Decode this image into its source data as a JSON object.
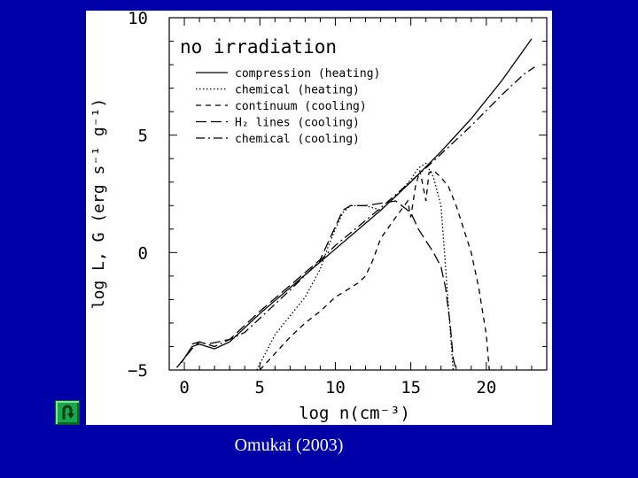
{
  "caption": "Omukai (2003)",
  "back_button": {
    "icon": "u-turn-icon",
    "color": "#1aa64a"
  },
  "colors": {
    "background": "#0000a8",
    "panel": "#ffffff",
    "ink": "#000000"
  },
  "chart_data": {
    "type": "line",
    "title": "no irradiation",
    "xlabel": "log n(cm⁻³)",
    "ylabel": "log L, G (erg s⁻¹ g⁻¹)",
    "xlim": [
      -1,
      24
    ],
    "ylim": [
      -5,
      10
    ],
    "xticks": [
      0,
      5,
      10,
      15,
      20
    ],
    "yticks": [
      -5,
      0,
      5,
      10
    ],
    "grid": false,
    "legend_position": "top-left",
    "series": [
      {
        "name": "compression (heating)",
        "dash": "solid",
        "x": [
          -0.2,
          0.5,
          1.0,
          1.5,
          2.0,
          3.0,
          5.0,
          7.0,
          9.0,
          11.0,
          13.0,
          15.0,
          17.0,
          19.0,
          21.0,
          23.0
        ],
        "y": [
          -4.7,
          -4.0,
          -3.9,
          -4.0,
          -4.1,
          -3.8,
          -2.6,
          -1.5,
          -0.4,
          0.7,
          1.8,
          3.0,
          4.3,
          5.7,
          7.3,
          9.1
        ]
      },
      {
        "name": "chemical (heating)",
        "dash": "dotted",
        "x": [
          4.8,
          6.0,
          7.0,
          8.0,
          9.0,
          9.5,
          10.0,
          10.5,
          11.0,
          12.0,
          13.0,
          14.0,
          15.0,
          15.5,
          16.0,
          16.5,
          17.0,
          17.8
        ],
        "y": [
          -5.0,
          -3.5,
          -2.7,
          -1.9,
          -0.7,
          0.2,
          1.0,
          1.7,
          2.0,
          2.0,
          1.8,
          2.4,
          3.1,
          3.6,
          3.8,
          3.2,
          2.0,
          -5.0
        ]
      },
      {
        "name": "continuum (cooling)",
        "dash": "short-dash",
        "x": [
          5.0,
          6.0,
          7.0,
          8.0,
          9.0,
          10.0,
          11.0,
          11.5,
          12.0,
          12.5,
          13.0,
          14.0,
          14.8,
          15.0,
          15.3,
          15.6,
          16.0,
          16.2,
          16.5,
          17.0,
          17.5,
          18.0,
          19.0,
          19.5,
          20.0,
          20.2
        ],
        "y": [
          -5.0,
          -4.3,
          -3.6,
          -3.0,
          -2.5,
          -1.9,
          -1.5,
          -1.3,
          -1.0,
          -0.3,
          0.6,
          1.5,
          2.2,
          1.5,
          2.8,
          3.5,
          2.2,
          3.4,
          3.5,
          3.2,
          2.8,
          2.0,
          0.0,
          -1.5,
          -3.5,
          -5.0
        ]
      },
      {
        "name": "H₂ lines (cooling)",
        "dash": "long-dash",
        "x": [
          -0.5,
          0.5,
          1.0,
          1.5,
          3.0,
          5.0,
          7.0,
          9.0,
          10.0,
          10.5,
          11.0,
          12.0,
          13.0,
          14.0,
          15.0,
          15.5,
          16.0,
          16.5,
          17.0,
          17.3,
          17.6,
          17.8,
          18.0
        ],
        "y": [
          -4.9,
          -4.1,
          -3.8,
          -3.9,
          -3.7,
          -2.5,
          -1.4,
          -0.3,
          1.1,
          1.8,
          2.0,
          2.0,
          2.1,
          2.2,
          1.7,
          1.0,
          0.5,
          0.0,
          -0.6,
          -1.5,
          -3.0,
          -4.5,
          -5.0
        ]
      },
      {
        "name": "chemical (cooling)",
        "dash": "dash-dot",
        "x": [
          0.5,
          1.0,
          2.0,
          4.0,
          7.0,
          10.0,
          13.0,
          16.0,
          19.0,
          21.0,
          22.5,
          23.2
        ],
        "y": [
          -3.9,
          -3.8,
          -4.0,
          -3.4,
          -1.6,
          0.3,
          1.9,
          3.6,
          5.4,
          6.7,
          7.6,
          7.9
        ]
      }
    ]
  }
}
